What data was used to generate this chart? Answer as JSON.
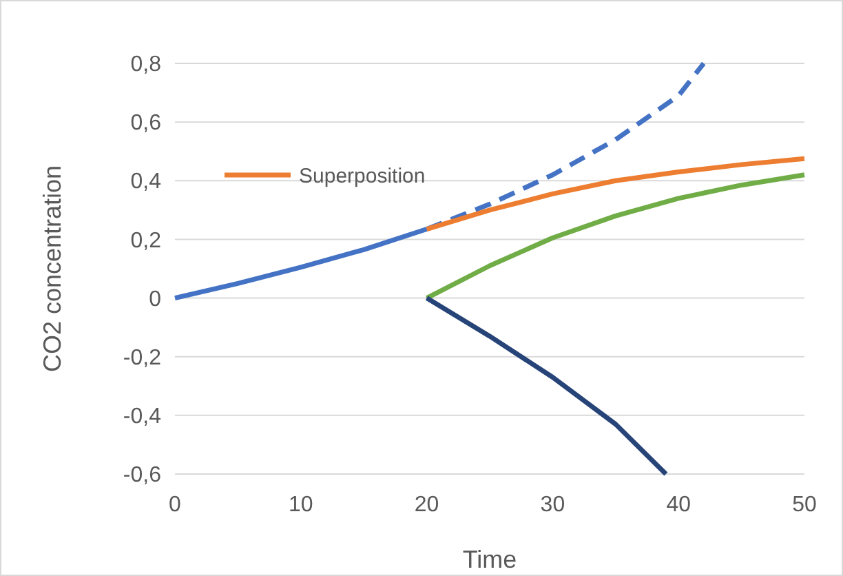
{
  "chart_data": {
    "type": "line",
    "xlabel": "Time",
    "ylabel": "CO2 concentration",
    "xlim": [
      0,
      50
    ],
    "xticks": [
      0,
      10,
      20,
      30,
      40,
      50
    ],
    "ylim": [
      -0.6,
      0.8
    ],
    "yticks": [
      {
        "value": -0.6,
        "label": "-0,6"
      },
      {
        "value": -0.4,
        "label": "-0,4"
      },
      {
        "value": -0.2,
        "label": "-0,2"
      },
      {
        "value": 0,
        "label": "0"
      },
      {
        "value": 0.2,
        "label": "0,2"
      },
      {
        "value": 0.4,
        "label": "0,4"
      },
      {
        "value": 0.6,
        "label": "0,6"
      },
      {
        "value": 0.8,
        "label": "0,8"
      }
    ],
    "grid": "y",
    "legend": "left",
    "marker": "none",
    "series": [
      {
        "color": "#4472c4",
        "x": [
          0,
          5,
          10,
          15,
          20
        ],
        "values": [
          0,
          0.05,
          0.105,
          0.165,
          0.235
        ]
      },
      {
        "color": "#4472c4",
        "line_style": "dashed",
        "x": [
          20,
          25,
          30,
          35,
          40,
          42
        ],
        "values": [
          0.235,
          0.32,
          0.42,
          0.54,
          0.69,
          0.8
        ]
      },
      {
        "name": "Superposition",
        "color": "#ed7d31",
        "x": [
          20,
          25,
          30,
          35,
          40,
          45,
          50
        ],
        "values": [
          0.235,
          0.3,
          0.355,
          0.4,
          0.43,
          0.455,
          0.475
        ]
      },
      {
        "color": "#70ad47",
        "x": [
          20,
          25,
          30,
          35,
          40,
          45,
          50
        ],
        "values": [
          0,
          0.11,
          0.205,
          0.28,
          0.34,
          0.385,
          0.42
        ]
      },
      {
        "color": "#264478",
        "x": [
          20,
          25,
          30,
          35,
          39
        ],
        "values": [
          0,
          -0.13,
          -0.27,
          -0.43,
          -0.6
        ]
      }
    ]
  }
}
